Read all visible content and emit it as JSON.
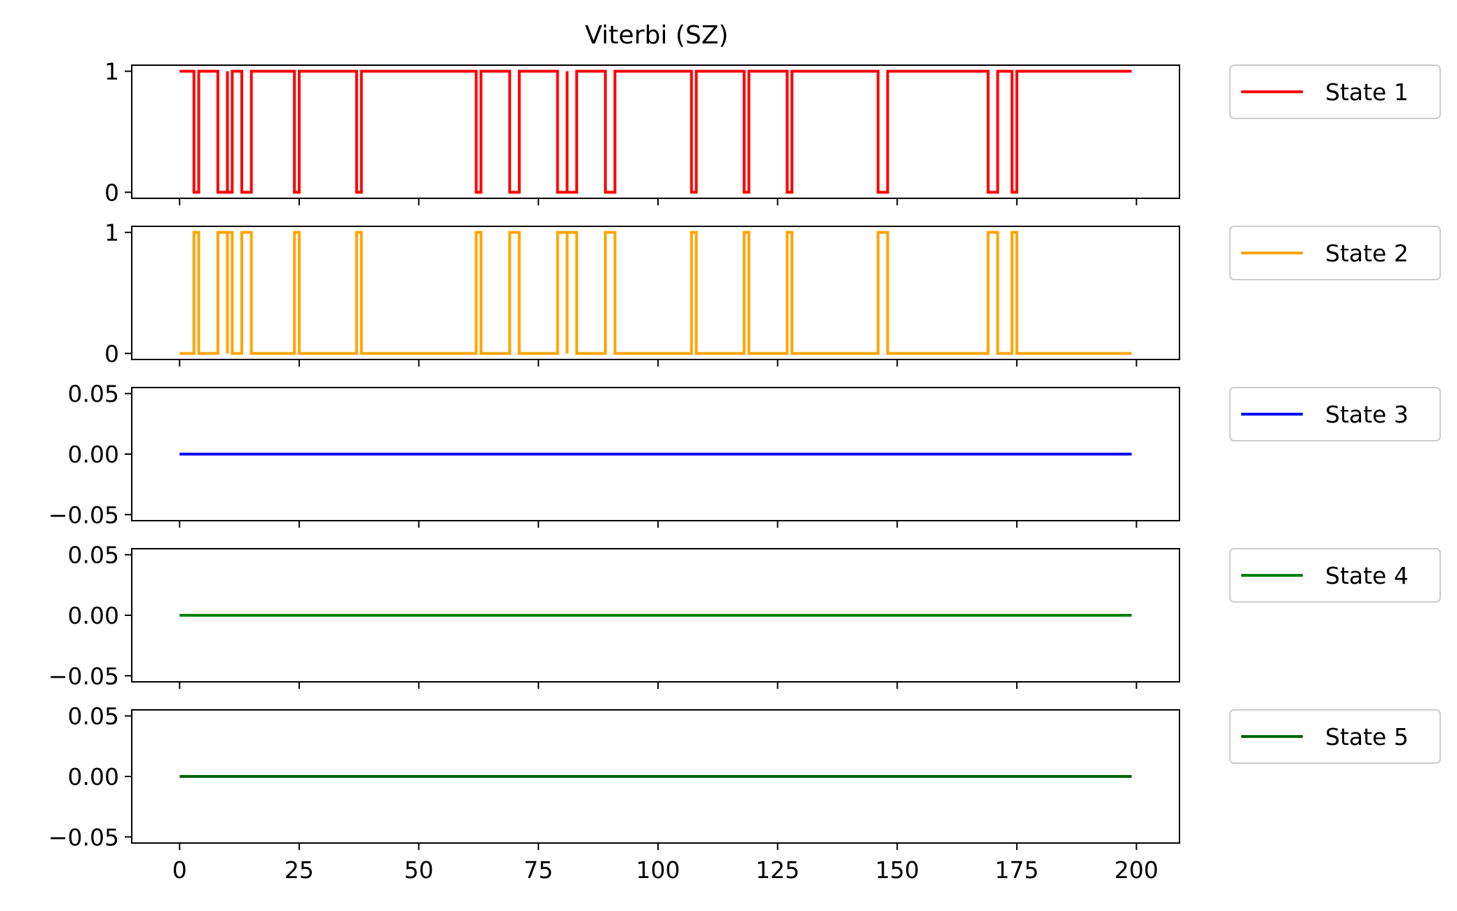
{
  "figure": {
    "title": "Viterbi (SZ)"
  },
  "chart_data": {
    "type": "line",
    "title": "Viterbi (SZ)",
    "xlim": [
      -10,
      209
    ],
    "x_ticks": [
      0,
      25,
      50,
      75,
      100,
      125,
      150,
      175,
      200
    ],
    "x_tick_labels": [
      "0",
      "25",
      "50",
      "75",
      "100",
      "125",
      "150",
      "175",
      "200"
    ],
    "grid": false,
    "legend_placement": "outside-right",
    "shared_x": true,
    "x_range": [
      0,
      199
    ],
    "panels": [
      {
        "series_name": "State 1",
        "color": "#ff0000",
        "ylim": [
          -0.05,
          1.05
        ],
        "y_ticks": [
          0,
          1
        ],
        "y_tick_labels": [
          "0",
          "1"
        ],
        "segments_value_1": [
          [
            0,
            3
          ],
          [
            4,
            8
          ],
          [
            10,
            10
          ],
          [
            11,
            13
          ],
          [
            15,
            24
          ],
          [
            25,
            37
          ],
          [
            38,
            62
          ],
          [
            63,
            69
          ],
          [
            71,
            79
          ],
          [
            81,
            81
          ],
          [
            83,
            89
          ],
          [
            91,
            107
          ],
          [
            108,
            118
          ],
          [
            119,
            127
          ],
          [
            128,
            146
          ],
          [
            148,
            169
          ],
          [
            171,
            174
          ],
          [
            175,
            199
          ]
        ]
      },
      {
        "series_name": "State 2",
        "color": "#ffa500",
        "ylim": [
          -0.05,
          1.05
        ],
        "y_ticks": [
          0,
          1
        ],
        "y_tick_labels": [
          "0",
          "1"
        ],
        "segments_value_1": [
          [
            3,
            4
          ],
          [
            8,
            10
          ],
          [
            10,
            11
          ],
          [
            13,
            15
          ],
          [
            24,
            25
          ],
          [
            37,
            38
          ],
          [
            62,
            63
          ],
          [
            69,
            71
          ],
          [
            79,
            81
          ],
          [
            81,
            83
          ],
          [
            89,
            91
          ],
          [
            107,
            108
          ],
          [
            118,
            119
          ],
          [
            127,
            128
          ],
          [
            146,
            148
          ],
          [
            169,
            171
          ],
          [
            174,
            175
          ]
        ]
      },
      {
        "series_name": "State 3",
        "color": "#0000ff",
        "ylim": [
          -0.055,
          0.055
        ],
        "y_ticks": [
          0.05,
          0.0,
          -0.05
        ],
        "y_tick_labels": [
          "0.05",
          "0.00",
          "−0.05"
        ],
        "constant_value": 0
      },
      {
        "series_name": "State 4",
        "color": "#008000",
        "ylim": [
          -0.055,
          0.055
        ],
        "y_ticks": [
          0.05,
          0.0,
          -0.05
        ],
        "y_tick_labels": [
          "0.05",
          "0.00",
          "−0.05"
        ],
        "constant_value": 0
      },
      {
        "series_name": "State 5",
        "color": "#006400",
        "ylim": [
          -0.055,
          0.055
        ],
        "y_ticks": [
          0.05,
          0.0,
          -0.05
        ],
        "y_tick_labels": [
          "0.05",
          "0.00",
          "−0.05"
        ],
        "constant_value": 0
      }
    ]
  }
}
